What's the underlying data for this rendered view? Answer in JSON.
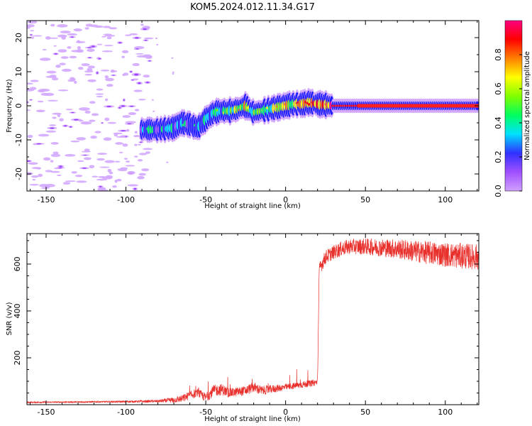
{
  "title": "KOM5.2024.012.11.34.G17",
  "chart_data": [
    {
      "type": "heatmap",
      "title": "",
      "xlabel": "Height of straight line (km)",
      "ylabel": "Frequency (Hz)",
      "xlim": [
        -162,
        121
      ],
      "ylim": [
        -25,
        25
      ],
      "xticks": [
        -150,
        -100,
        -50,
        0,
        50,
        100
      ],
      "yticks": [
        -20,
        -10,
        0,
        10,
        20
      ],
      "colormap": [
        "#d0a0ff",
        "#a050ff",
        "#3030ff",
        "#00e0ff",
        "#00ff60",
        "#80ff00",
        "#ffff00",
        "#ff8000",
        "#ff0000",
        "#ff0080"
      ],
      "colorbar": {
        "label": "Normalized spectral amplitude",
        "range": [
          0,
          1
        ],
        "ticks": [
          0.0,
          0.2,
          0.4,
          0.6,
          0.8
        ]
      },
      "noise_region": {
        "x": [
          -162,
          -85
        ],
        "y": [
          -25,
          25
        ],
        "amplitude": 0.12
      },
      "ridge": {
        "x": [
          -90,
          -80,
          -70,
          -65,
          -60,
          -55,
          -50,
          -45,
          -40,
          -35,
          -30,
          -25,
          -20,
          -15,
          -10,
          -5,
          0,
          5,
          10,
          15,
          20,
          25,
          30,
          40,
          50,
          60,
          70,
          80,
          90,
          100,
          110,
          121
        ],
        "freq": [
          -7,
          -7,
          -6.5,
          -5,
          -5.5,
          -6.5,
          -4,
          -2,
          -1.5,
          -1.5,
          -1,
          0,
          -2,
          -1.5,
          -1,
          -0.5,
          0,
          0.5,
          0.5,
          1,
          0.5,
          0.3,
          0,
          0,
          0,
          0,
          0,
          0,
          0,
          0,
          0,
          0
        ],
        "amplitude": [
          0.2,
          0.3,
          0.3,
          0.25,
          0.3,
          0.25,
          0.3,
          0.35,
          0.4,
          0.45,
          0.5,
          0.6,
          0.4,
          0.45,
          0.5,
          0.55,
          0.6,
          0.65,
          0.7,
          0.7,
          0.75,
          0.8,
          0.85,
          0.9,
          0.9,
          0.92,
          0.95,
          0.95,
          0.95,
          0.95,
          0.95,
          0.95
        ]
      }
    },
    {
      "type": "line",
      "title": "",
      "xlabel": "Height of straight line (km)",
      "ylabel": "SNR (v/v)",
      "xlim": [
        -162,
        121
      ],
      "ylim": [
        0,
        730
      ],
      "xticks": [
        -150,
        -100,
        -50,
        0,
        50,
        100
      ],
      "yticks": [
        200,
        400,
        600
      ],
      "color": "#e8302c",
      "series": [
        {
          "x": [
            -162,
            -140,
            -120,
            -100,
            -80,
            -70,
            -65,
            -60,
            -55,
            -50,
            -45,
            -40,
            -35,
            -30,
            -25,
            -20,
            -15,
            -10,
            -5,
            0,
            5,
            10,
            15,
            19,
            20,
            21,
            22,
            25,
            30,
            35,
            40,
            50,
            60,
            70,
            80,
            90,
            100,
            110,
            121
          ],
          "y": [
            10,
            11,
            12,
            13,
            15,
            20,
            25,
            40,
            50,
            30,
            60,
            65,
            50,
            55,
            60,
            75,
            60,
            65,
            70,
            75,
            80,
            85,
            90,
            95,
            100,
            570,
            590,
            630,
            650,
            665,
            675,
            675,
            670,
            665,
            655,
            648,
            640,
            635,
            630
          ],
          "noise": [
            3,
            3,
            3,
            4,
            6,
            12,
            16,
            18,
            18,
            20,
            25,
            25,
            20,
            20,
            20,
            22,
            20,
            18,
            16,
            14,
            14,
            14,
            14,
            14,
            14,
            30,
            30,
            30,
            30,
            32,
            32,
            35,
            38,
            42,
            46,
            50,
            52,
            55,
            55
          ]
        }
      ]
    }
  ]
}
